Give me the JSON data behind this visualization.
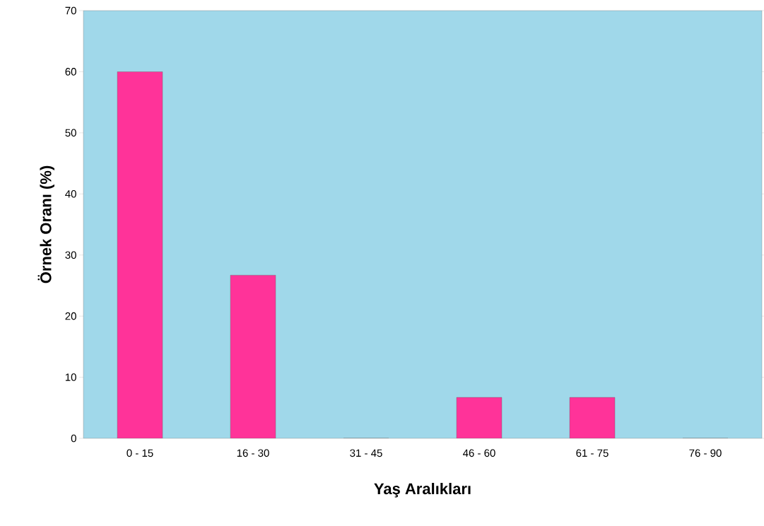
{
  "chart_data": {
    "type": "bar",
    "xlabel": "Yaş Aralıkları",
    "ylabel": "Örnek Oranı (%)",
    "categories": [
      "0 - 15",
      "16 - 30",
      "31 - 45",
      "46 - 60",
      "61 - 75",
      "76 - 90"
    ],
    "values": [
      60,
      26.7,
      0,
      6.7,
      6.7,
      0
    ],
    "color": "#ff3399",
    "ylim": [
      0,
      70
    ],
    "yticks": [
      0,
      10,
      20,
      30,
      40,
      50,
      60,
      70
    ],
    "grid": false
  }
}
